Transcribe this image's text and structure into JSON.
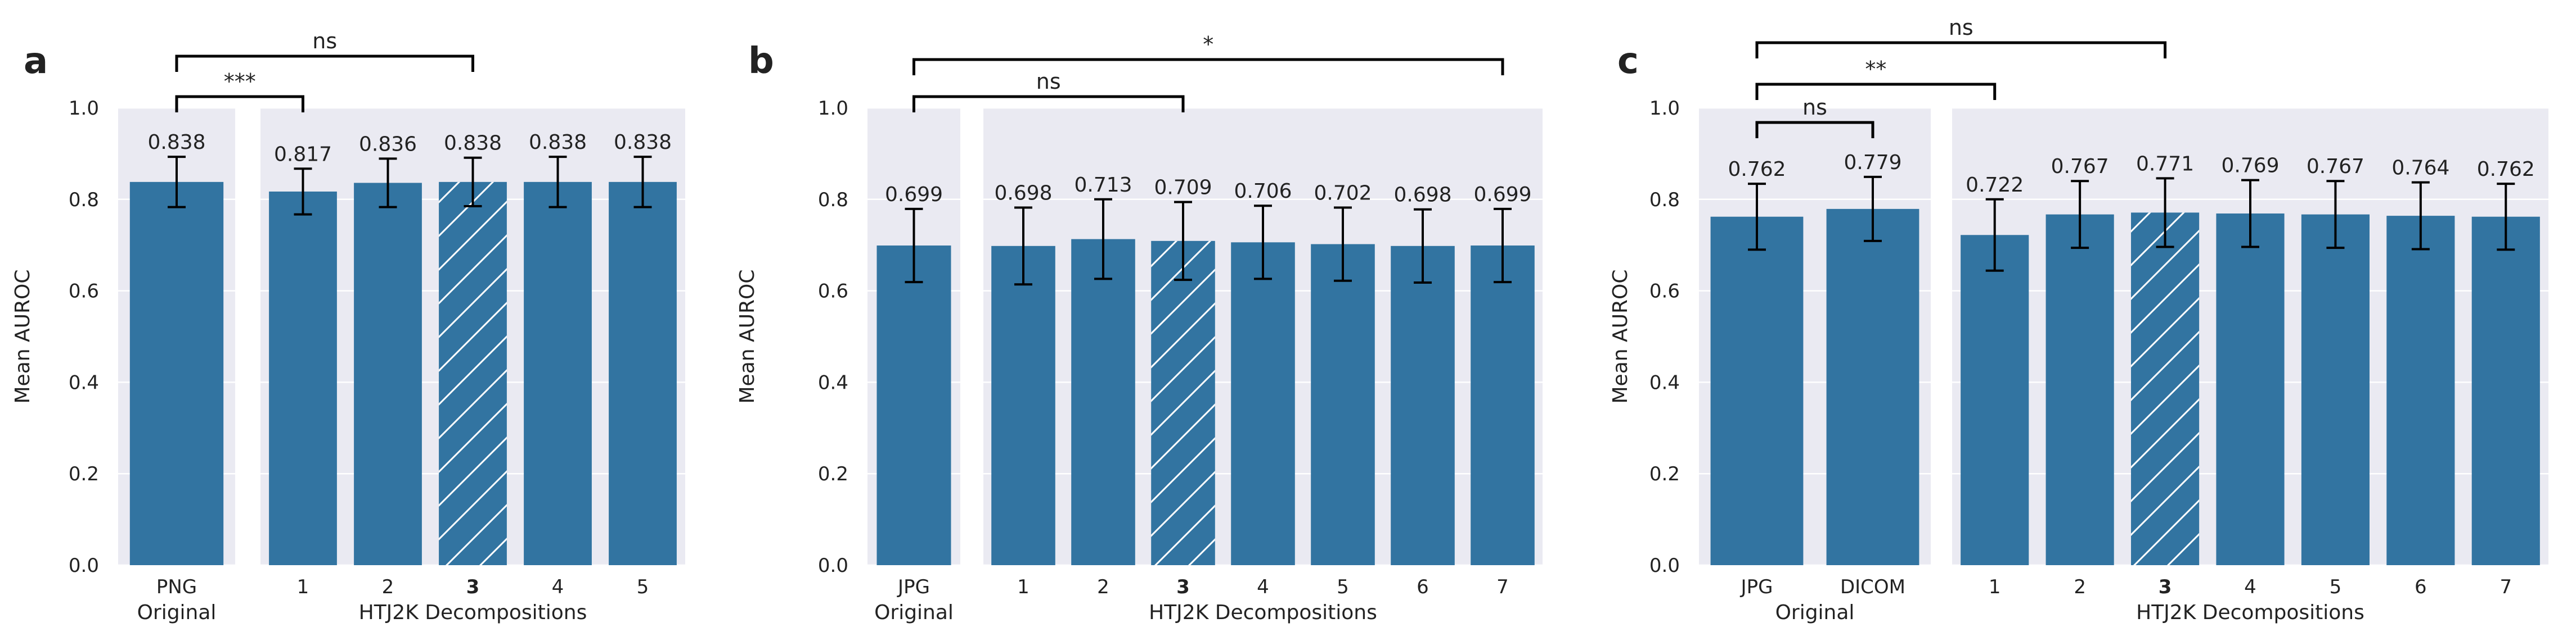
{
  "colors": {
    "bar": "#3274a1",
    "plot_bg": "#eaeaf2",
    "grid": "#ffffff",
    "errorbar": "#000000",
    "bracket": "#000000",
    "hatch": "#ffffff"
  },
  "chart_data": [
    {
      "type": "bar",
      "panel": "a",
      "ylabel": "Mean AUROC",
      "ylim": [
        0.0,
        1.0
      ],
      "yticks": [
        "0.0",
        "0.2",
        "0.4",
        "0.6",
        "0.8",
        "1.0"
      ],
      "grid": true,
      "groups": [
        {
          "label": "Original",
          "bars": [
            {
              "category": "PNG",
              "value": 0.838,
              "value_label": "0.838",
              "err": 0.055,
              "bold": false,
              "hatched": false
            }
          ]
        },
        {
          "label": "HTJ2K Decompositions",
          "bars": [
            {
              "category": "1",
              "value": 0.817,
              "value_label": "0.817",
              "err": 0.05,
              "bold": false,
              "hatched": false
            },
            {
              "category": "2",
              "value": 0.836,
              "value_label": "0.836",
              "err": 0.053,
              "bold": false,
              "hatched": false
            },
            {
              "category": "3",
              "value": 0.838,
              "value_label": "0.838",
              "err": 0.053,
              "bold": true,
              "hatched": true
            },
            {
              "category": "4",
              "value": 0.838,
              "value_label": "0.838",
              "err": 0.055,
              "bold": false,
              "hatched": false
            },
            {
              "category": "5",
              "value": 0.838,
              "value_label": "0.838",
              "err": 0.055,
              "bold": false,
              "hatched": false
            }
          ]
        }
      ],
      "annotations": [
        {
          "text": "***",
          "from": "PNG",
          "to": "1",
          "level": 0
        },
        {
          "text": "ns",
          "from": "PNG",
          "to": "3",
          "level": 1
        }
      ]
    },
    {
      "type": "bar",
      "panel": "b",
      "ylabel": "Mean AUROC",
      "ylim": [
        0.0,
        1.0
      ],
      "yticks": [
        "0.0",
        "0.2",
        "0.4",
        "0.6",
        "0.8",
        "1.0"
      ],
      "grid": true,
      "groups": [
        {
          "label": "Original",
          "bars": [
            {
              "category": "JPG",
              "value": 0.699,
              "value_label": "0.699",
              "err": 0.08,
              "bold": false,
              "hatched": false
            }
          ]
        },
        {
          "label": "HTJ2K Decompositions",
          "bars": [
            {
              "category": "1",
              "value": 0.698,
              "value_label": "0.698",
              "err": 0.084,
              "bold": false,
              "hatched": false
            },
            {
              "category": "2",
              "value": 0.713,
              "value_label": "0.713",
              "err": 0.087,
              "bold": false,
              "hatched": false
            },
            {
              "category": "3",
              "value": 0.709,
              "value_label": "0.709",
              "err": 0.085,
              "bold": true,
              "hatched": true
            },
            {
              "category": "4",
              "value": 0.706,
              "value_label": "0.706",
              "err": 0.08,
              "bold": false,
              "hatched": false
            },
            {
              "category": "5",
              "value": 0.702,
              "value_label": "0.702",
              "err": 0.08,
              "bold": false,
              "hatched": false
            },
            {
              "category": "6",
              "value": 0.698,
              "value_label": "0.698",
              "err": 0.08,
              "bold": false,
              "hatched": false
            },
            {
              "category": "7",
              "value": 0.699,
              "value_label": "0.699",
              "err": 0.08,
              "bold": false,
              "hatched": false
            }
          ]
        }
      ],
      "annotations": [
        {
          "text": "ns",
          "from": "JPG",
          "to": "3",
          "level": 0
        },
        {
          "text": "*",
          "from": "JPG",
          "to": "7",
          "level": 1
        }
      ]
    },
    {
      "type": "bar",
      "panel": "c",
      "ylabel": "Mean AUROC",
      "ylim": [
        0.0,
        1.0
      ],
      "yticks": [
        "0.0",
        "0.2",
        "0.4",
        "0.6",
        "0.8",
        "1.0"
      ],
      "grid": true,
      "groups": [
        {
          "label": "Original",
          "bars": [
            {
              "category": "JPG",
              "value": 0.762,
              "value_label": "0.762",
              "err": 0.072,
              "bold": false,
              "hatched": false
            },
            {
              "category": "DICOM",
              "value": 0.779,
              "value_label": "0.779",
              "err": 0.07,
              "bold": false,
              "hatched": false
            }
          ]
        },
        {
          "label": "HTJ2K Decompositions",
          "bars": [
            {
              "category": "1",
              "value": 0.722,
              "value_label": "0.722",
              "err": 0.078,
              "bold": false,
              "hatched": false
            },
            {
              "category": "2",
              "value": 0.767,
              "value_label": "0.767",
              "err": 0.073,
              "bold": false,
              "hatched": false
            },
            {
              "category": "3",
              "value": 0.771,
              "value_label": "0.771",
              "err": 0.075,
              "bold": true,
              "hatched": true
            },
            {
              "category": "4",
              "value": 0.769,
              "value_label": "0.769",
              "err": 0.073,
              "bold": false,
              "hatched": false
            },
            {
              "category": "5",
              "value": 0.767,
              "value_label": "0.767",
              "err": 0.073,
              "bold": false,
              "hatched": false
            },
            {
              "category": "6",
              "value": 0.764,
              "value_label": "0.764",
              "err": 0.073,
              "bold": false,
              "hatched": false
            },
            {
              "category": "7",
              "value": 0.762,
              "value_label": "0.762",
              "err": 0.072,
              "bold": false,
              "hatched": false
            }
          ]
        }
      ],
      "annotations": [
        {
          "text": "ns",
          "from": "JPG",
          "to": "DICOM",
          "level": 0
        },
        {
          "text": "**",
          "from": "JPG",
          "to": "1",
          "level": 1
        },
        {
          "text": "ns",
          "from": "JPG",
          "to": "3",
          "level": 2
        }
      ]
    }
  ]
}
